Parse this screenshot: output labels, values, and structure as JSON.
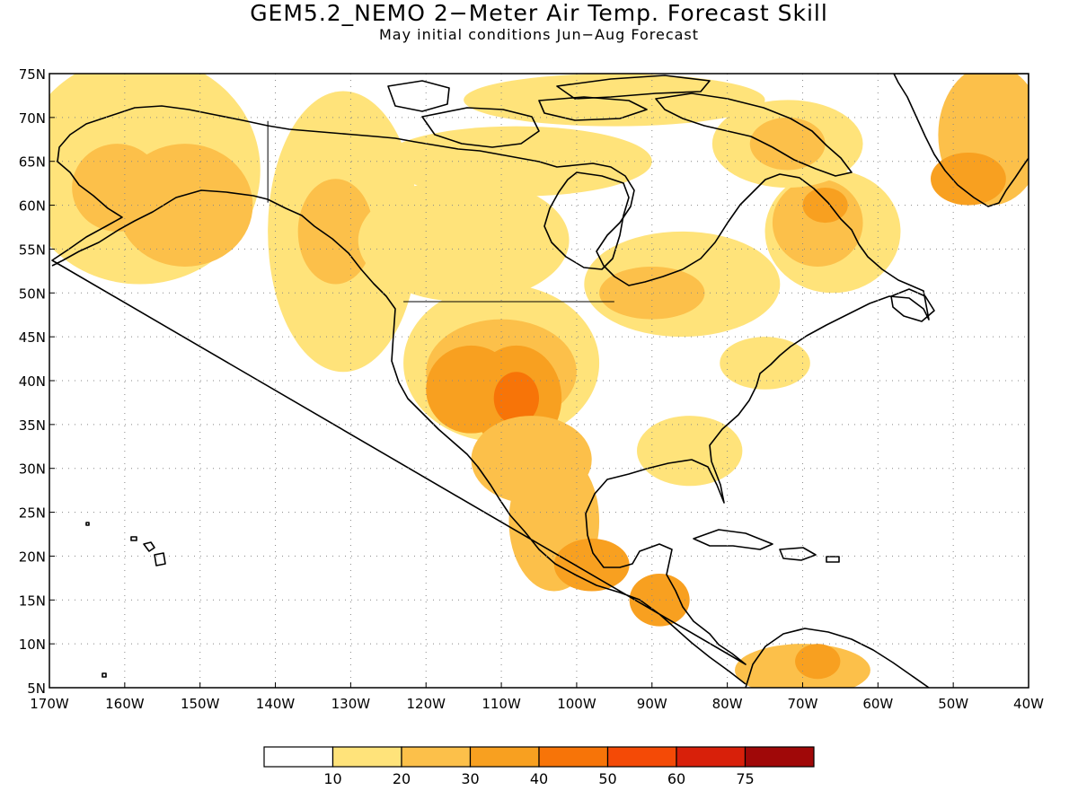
{
  "title": "GEM5.2_NEMO 2−Meter Air Temp. Forecast Skill",
  "subtitle": "May initial conditions   Jun−Aug Forecast",
  "map": {
    "lon_range": [
      -170,
      -40
    ],
    "lat_range": [
      5,
      75
    ],
    "lon_tick_labels": [
      "170W",
      "160W",
      "150W",
      "140W",
      "130W",
      "120W",
      "110W",
      "100W",
      "90W",
      "80W",
      "70W",
      "60W",
      "50W",
      "40W"
    ],
    "lat_tick_labels": [
      "5N",
      "10N",
      "15N",
      "20N",
      "25N",
      "30N",
      "35N",
      "40N",
      "45N",
      "50N",
      "55N",
      "60N",
      "65N",
      "70N",
      "75N"
    ],
    "gridlines": "dotted"
  },
  "colorbar": {
    "levels": [
      "10",
      "20",
      "30",
      "40",
      "50",
      "60",
      "75"
    ],
    "colors": [
      "#ffffff",
      "#ffe37a",
      "#fcc04a",
      "#f8a020",
      "#f77408",
      "#f44a06",
      "#d8200a",
      "#a00808"
    ]
  },
  "regions": [
    {
      "name": "alaska-west",
      "lon": -158,
      "lat": 64,
      "rx": 16,
      "ry": 13,
      "level": 1
    },
    {
      "name": "alaska-south",
      "lon": -152,
      "lat": 60,
      "rx": 9,
      "ry": 7,
      "level": 2
    },
    {
      "name": "alaska-southwest",
      "lon": -161,
      "lat": 62,
      "rx": 6,
      "ry": 5,
      "level": 2
    },
    {
      "name": "bc-coast",
      "lon": -131,
      "lat": 57,
      "rx": 10,
      "ry": 16,
      "level": 1
    },
    {
      "name": "bc-coast-inner",
      "lon": -132,
      "lat": 57,
      "rx": 5,
      "ry": 6,
      "level": 2
    },
    {
      "name": "canada-prairie",
      "lon": -115,
      "lat": 56,
      "rx": 14,
      "ry": 7,
      "level": 1
    },
    {
      "name": "canada-arctic-strip",
      "lon": -108,
      "lat": 65,
      "rx": 18,
      "ry": 4,
      "level": 1
    },
    {
      "name": "canada-arctic-islands",
      "lon": -95,
      "lat": 72,
      "rx": 20,
      "ry": 3,
      "level": 1
    },
    {
      "name": "ontario-quebec",
      "lon": -86,
      "lat": 51,
      "rx": 13,
      "ry": 6,
      "level": 1
    },
    {
      "name": "ontario-inner",
      "lon": -90,
      "lat": 50,
      "rx": 7,
      "ry": 3,
      "level": 2
    },
    {
      "name": "labrador",
      "lon": -66,
      "lat": 57,
      "rx": 9,
      "ry": 7,
      "level": 1
    },
    {
      "name": "labrador-inner",
      "lon": -68,
      "lat": 58,
      "rx": 6,
      "ry": 5,
      "level": 2
    },
    {
      "name": "labrador-core",
      "lon": -67,
      "lat": 60,
      "rx": 3,
      "ry": 2,
      "level": 3
    },
    {
      "name": "baffin",
      "lon": -72,
      "lat": 67,
      "rx": 10,
      "ry": 5,
      "level": 1
    },
    {
      "name": "baffin-inner",
      "lon": -72,
      "lat": 67,
      "rx": 5,
      "ry": 3,
      "level": 2
    },
    {
      "name": "us-west",
      "lon": -110,
      "lat": 42,
      "rx": 13,
      "ry": 9,
      "level": 1
    },
    {
      "name": "us-west-inner",
      "lon": -110,
      "lat": 41,
      "rx": 10,
      "ry": 6,
      "level": 2
    },
    {
      "name": "us-great-basin",
      "lon": -114,
      "lat": 39,
      "rx": 6,
      "ry": 5,
      "level": 3
    },
    {
      "name": "us-four-corners",
      "lon": -108,
      "lat": 38,
      "rx": 6,
      "ry": 6,
      "level": 3
    },
    {
      "name": "us-four-corners-core",
      "lon": -108,
      "lat": 38,
      "rx": 3,
      "ry": 3,
      "level": 4
    },
    {
      "name": "us-southwest",
      "lon": -106,
      "lat": 31,
      "rx": 8,
      "ry": 5,
      "level": 2
    },
    {
      "name": "us-northeast",
      "lon": -75,
      "lat": 42,
      "rx": 6,
      "ry": 3,
      "level": 1
    },
    {
      "name": "us-southeast",
      "lon": -85,
      "lat": 32,
      "rx": 7,
      "ry": 4,
      "level": 1
    },
    {
      "name": "mexico",
      "lon": -103,
      "lat": 24,
      "rx": 6,
      "ry": 8,
      "level": 2
    },
    {
      "name": "mexico-south",
      "lon": -98,
      "lat": 19,
      "rx": 5,
      "ry": 3,
      "level": 3
    },
    {
      "name": "central-america",
      "lon": -89,
      "lat": 15,
      "rx": 4,
      "ry": 3,
      "level": 3
    },
    {
      "name": "south-america-north",
      "lon": -70,
      "lat": 7,
      "rx": 9,
      "ry": 3,
      "level": 2
    },
    {
      "name": "venezuela-core",
      "lon": -68,
      "lat": 8,
      "rx": 3,
      "ry": 2,
      "level": 3
    },
    {
      "name": "greenland",
      "lon": -45,
      "lat": 68,
      "rx": 7,
      "ry": 8,
      "level": 2
    },
    {
      "name": "greenland-south",
      "lon": -48,
      "lat": 63,
      "rx": 5,
      "ry": 3,
      "level": 3
    }
  ],
  "borders": {
    "alaska-yukon": [
      [
        -141,
        69.6
      ],
      [
        -141,
        60.3
      ]
    ],
    "canada-us-49": [
      [
        -123,
        49
      ],
      [
        -95,
        49
      ]
    ]
  }
}
